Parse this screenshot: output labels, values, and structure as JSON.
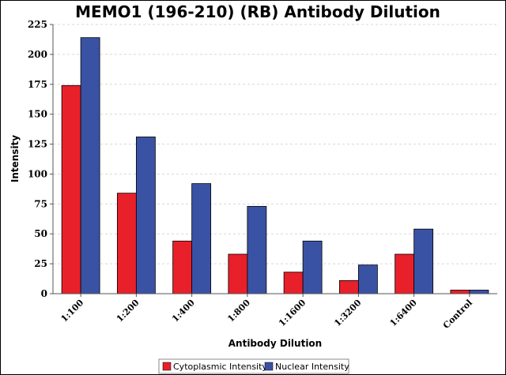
{
  "chart_data": {
    "type": "bar",
    "title": "MEMO1 (196-210) (RB) Antibody Dilution",
    "xlabel": "Antibody Dilution",
    "ylabel": "Intensity",
    "categories": [
      "1:100",
      "1:200",
      "1:400",
      "1:800",
      "1:1600",
      "1:3200",
      "1:6400",
      "Control"
    ],
    "series": [
      {
        "name": "Cytoplasmic Intensity",
        "color": "#e8202a",
        "values": [
          174,
          84,
          44,
          33,
          18,
          11,
          33,
          3
        ]
      },
      {
        "name": "Nuclear Intensity",
        "color": "#3a52a4",
        "values": [
          214,
          131,
          92,
          73,
          44,
          24,
          54,
          3
        ]
      }
    ],
    "ylim": [
      0,
      225
    ],
    "yticks": [
      0,
      25,
      50,
      75,
      100,
      125,
      150,
      175,
      200,
      225
    ],
    "grid": true,
    "legend_position": "bottom-center"
  }
}
